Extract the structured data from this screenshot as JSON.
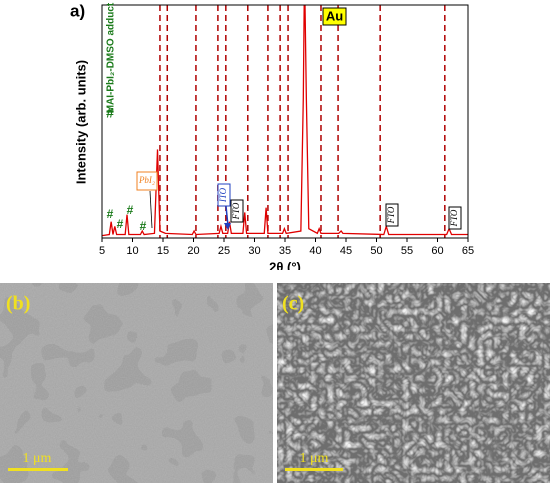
{
  "chart_data": {
    "type": "line",
    "panel": "a)",
    "xlabel": "2θ (°)",
    "ylabel": "Intensity (arb. units)",
    "x": [
      5,
      6.2,
      6.5,
      6.8,
      7.1,
      7.4,
      8.8,
      9.1,
      9.4,
      11.3,
      11.6,
      11.9,
      13.6,
      14.1,
      14.5,
      15.4,
      19.8,
      20.1,
      20.4,
      24.2,
      24.5,
      24.8,
      25.6,
      25.9,
      26.2,
      28.1,
      28.4,
      28.7,
      31.6,
      31.9,
      32.2,
      34.6,
      34.9,
      35.2,
      37.6,
      38.0,
      38.2,
      38.5,
      38.9,
      40.3,
      40.6,
      40.9,
      43.8,
      44.2,
      44.5,
      51.2,
      51.6,
      52,
      61.5,
      61.9,
      62.3,
      65
    ],
    "series": [
      {
        "color": "#e00000",
        "values": [
          1,
          1.5,
          7,
          1.5,
          5,
          1.5,
          1.5,
          10,
          1.5,
          1.5,
          3,
          1.5,
          2,
          38,
          3,
          2,
          1.5,
          3,
          1.5,
          2,
          5,
          2,
          2,
          7,
          2,
          2,
          11,
          2,
          2,
          13,
          2,
          2,
          4,
          2,
          3,
          60,
          115,
          60,
          4,
          2,
          4,
          2,
          2,
          3,
          2,
          1.5,
          5,
          1.5,
          1.5,
          4,
          1.5,
          1.5
        ]
      }
    ],
    "xlim": [
      5,
      65
    ],
    "xticks": [
      5,
      10,
      15,
      20,
      25,
      30,
      35,
      40,
      45,
      50,
      55,
      60,
      65
    ],
    "ylim": [
      0,
      100
    ],
    "reference_lines": [
      14.5,
      15.7,
      20.4,
      24.0,
      25.3,
      28.9,
      32.2,
      34.2,
      35.5,
      40.9,
      43.7,
      50.6,
      61.2
    ],
    "reference_color": "#b00000",
    "annotations": {
      "au": "Au",
      "hash": "#",
      "pbi2": "PbI₂",
      "ito": "ITO",
      "fto": "FTO",
      "adduct": "MAI-PbI₂-DMSO adduct"
    }
  },
  "images": [
    {
      "panel": "(b)",
      "scale_bar": "1 μm"
    },
    {
      "panel": "(c)",
      "scale_bar": "1 μm"
    }
  ]
}
